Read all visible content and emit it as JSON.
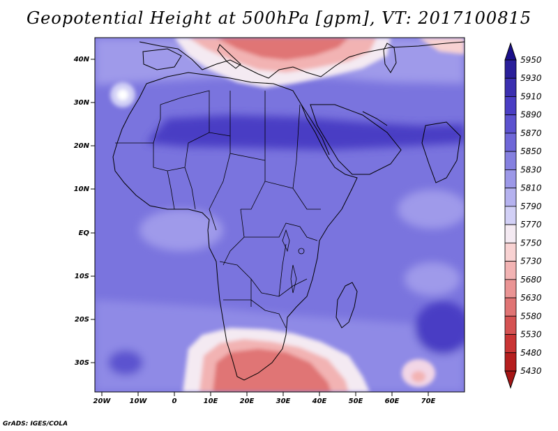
{
  "title": "Geopotential Height at 500hPa [gpm], VT: 2017100815",
  "credit": "GrADS: IGES/COLA",
  "axes": {
    "lat_ticks": [
      "40N",
      "30N",
      "20N",
      "10N",
      "EQ",
      "10S",
      "20S",
      "30S"
    ],
    "lon_ticks": [
      "20W",
      "10W",
      "0",
      "10E",
      "20E",
      "30E",
      "40E",
      "50E",
      "60E",
      "70E"
    ]
  },
  "colorbar": {
    "levels": [
      "5950",
      "5930",
      "5910",
      "5890",
      "5870",
      "5850",
      "5830",
      "5810",
      "5790",
      "5770",
      "5750",
      "5730",
      "5680",
      "5630",
      "5580",
      "5530",
      "5480",
      "5430"
    ],
    "colors": [
      "#2a1f9a",
      "#3b2fb0",
      "#4a3ec4",
      "#5c52cf",
      "#6f67d8",
      "#8580e0",
      "#9c98e8",
      "#b5b2ef",
      "#d2d0f6",
      "#f4eaf2",
      "#f8d2d2",
      "#f2b3b3",
      "#ea9494",
      "#e07474",
      "#d55252",
      "#c93434",
      "#b51e1e"
    ]
  },
  "colors": {
    "bg_blue": "#7570dd",
    "deep_blue": "#4a3ec4",
    "light_blue": "#9f9aea",
    "warm_red": "#e07474",
    "pale_pink": "#f8d2d2"
  }
}
